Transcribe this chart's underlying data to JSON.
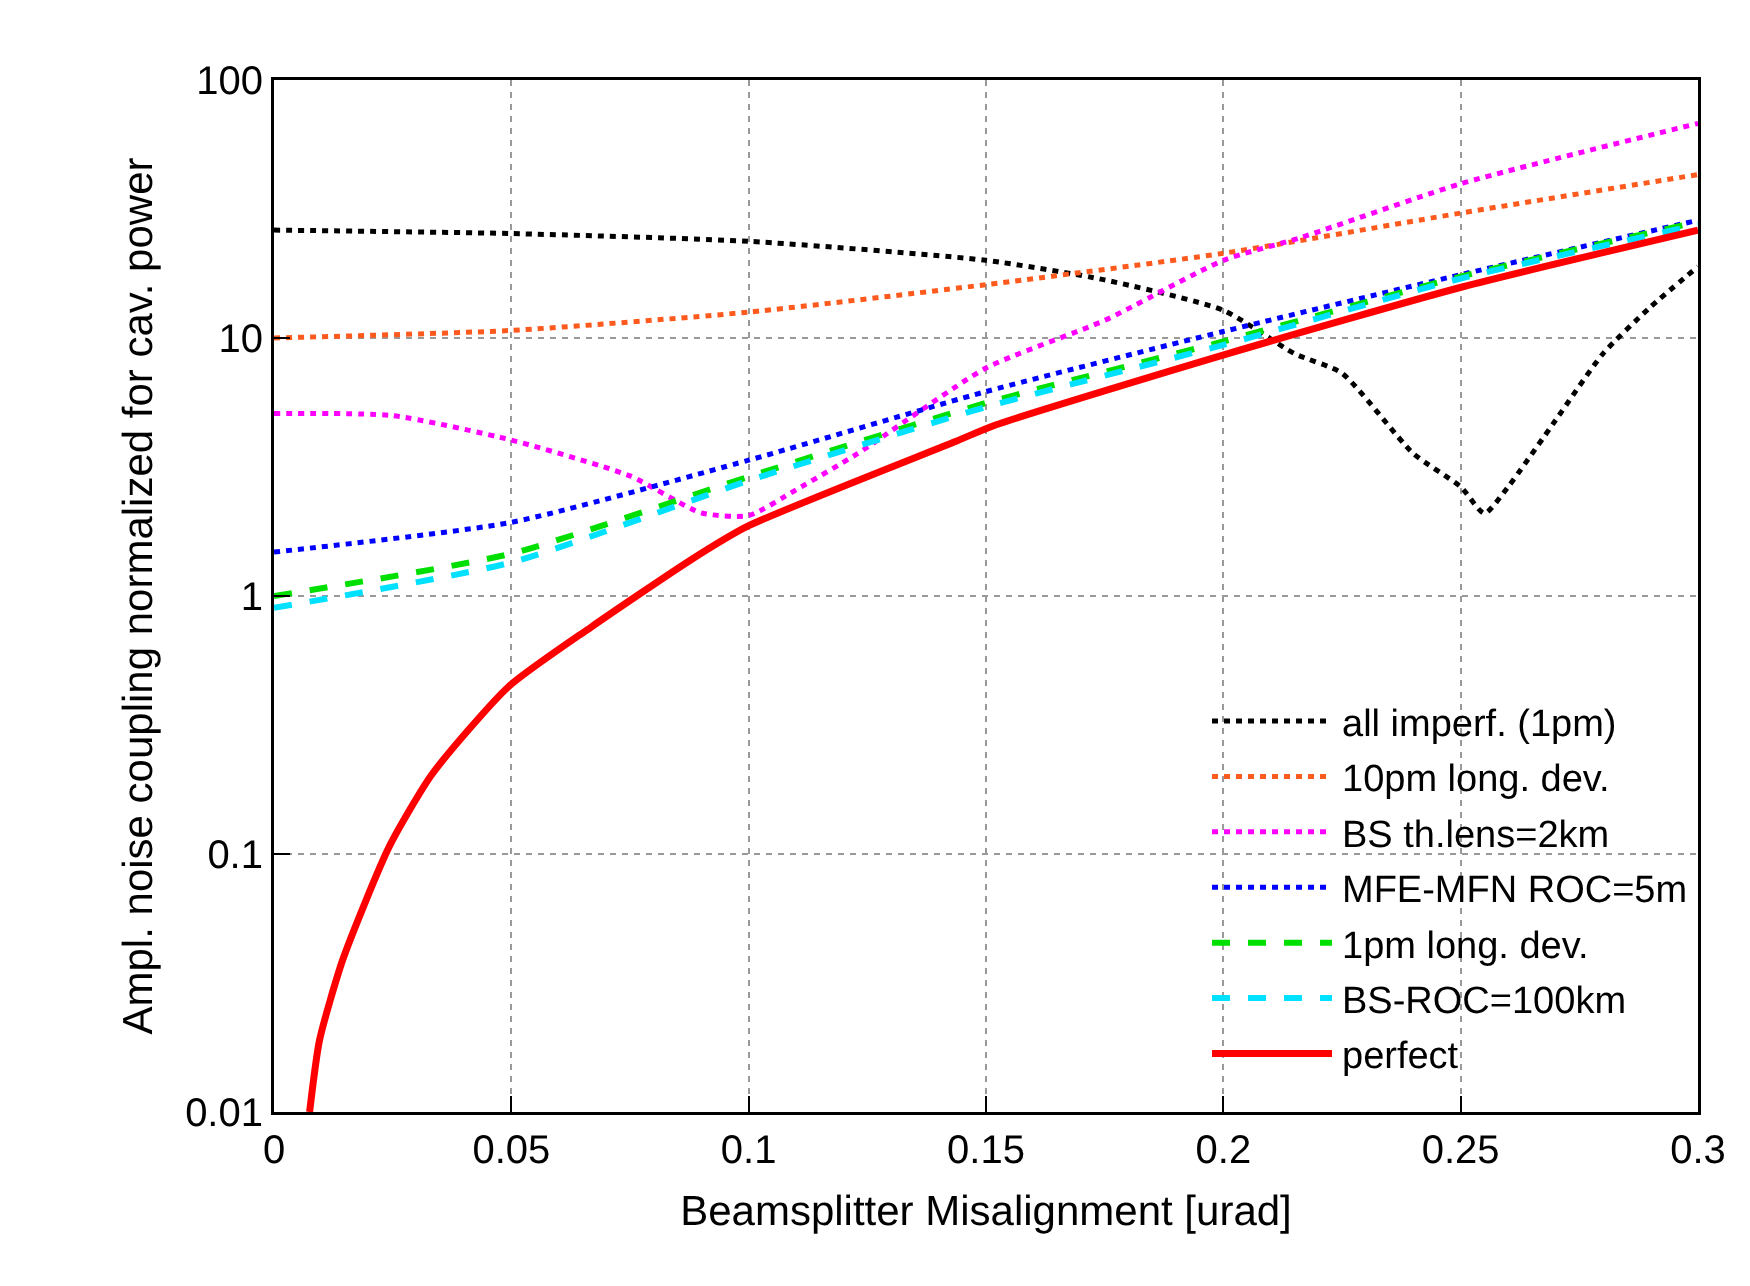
{
  "chart_data": {
    "type": "line",
    "xlabel": "Beamsplitter Misalignment [urad]",
    "ylabel": "Ampl. noise coupling normalized for cav. power",
    "xlim": [
      0,
      0.3
    ],
    "xticks": [
      0,
      0.05,
      0.1,
      0.15,
      0.2,
      0.25,
      0.3
    ],
    "ylim": [
      0.01,
      100
    ],
    "yticks": [
      0.01,
      0.1,
      1,
      10,
      100
    ],
    "log": "y",
    "grid": true,
    "legend": "bottom right",
    "series": [
      {
        "name": "all imperf. (1pm)",
        "color": "#000000",
        "line_style": "dotted",
        "x": [
          0,
          0.05,
          0.1,
          0.15,
          0.175,
          0.2,
          0.215,
          0.225,
          0.24,
          0.25,
          0.255,
          0.26,
          0.27,
          0.28,
          0.29,
          0.3
        ],
        "values": [
          26.2,
          25.4,
          23.7,
          20,
          16.8,
          12.8,
          8.7,
          7.3,
          3.57,
          2.65,
          2.09,
          2.65,
          4.8,
          8.7,
          13.2,
          18.9
        ]
      },
      {
        "name": "10pm long. dev.",
        "color": "#ff5a1e",
        "line_style": "dotted",
        "x": [
          0,
          0.05,
          0.1,
          0.15,
          0.2,
          0.25,
          0.3
        ],
        "values": [
          10,
          10.7,
          12.6,
          16.1,
          21.3,
          30.5,
          43
        ]
      },
      {
        "name": "BS th.lens=2km",
        "color": "#ff00ff",
        "line_style": "dotted",
        "x": [
          0,
          0.025,
          0.05,
          0.075,
          0.09,
          0.1,
          0.11,
          0.123,
          0.15,
          0.175,
          0.2,
          0.216,
          0.25,
          0.3
        ],
        "values": [
          5.1,
          5,
          4.02,
          2.92,
          2.1,
          2.05,
          2.58,
          3.57,
          7.65,
          11.7,
          20,
          24.4,
          39.6,
          67.9
        ]
      },
      {
        "name": "MFE-MFN ROC=5m",
        "color": "#0000ff",
        "line_style": "dotted",
        "x": [
          0,
          0.05,
          0.1,
          0.15,
          0.2,
          0.25,
          0.3
        ],
        "values": [
          1.48,
          1.93,
          3.36,
          6.2,
          10.6,
          17.6,
          28.6
        ]
      },
      {
        "name": "1pm long. dev.",
        "color": "#00e000",
        "line_style": "dashed",
        "x": [
          0,
          0.05,
          0.1,
          0.15,
          0.2,
          0.25,
          0.3
        ],
        "values": [
          1,
          1.46,
          2.9,
          5.6,
          9.7,
          17.3,
          28.2
        ]
      },
      {
        "name": "BS-ROC=100km",
        "color": "#00e0ff",
        "line_style": "dashed",
        "x": [
          0,
          0.05,
          0.1,
          0.15,
          0.2,
          0.25,
          0.3
        ],
        "values": [
          0.9,
          1.35,
          2.8,
          5.4,
          9.4,
          17,
          27.5
        ]
      },
      {
        "name": "perfect",
        "color": "#ff0000",
        "line_style": "solid",
        "x": [
          0.0075,
          0.0096,
          0.0145,
          0.0243,
          0.0334,
          0.0494,
          0.0669,
          0.0878,
          0.0997,
          0.1437,
          0.152,
          0.201,
          0.2505,
          0.3
        ],
        "values": [
          0.01,
          0.019,
          0.039,
          0.107,
          0.205,
          0.445,
          0.76,
          1.38,
          1.86,
          3.98,
          4.6,
          8.7,
          15.8,
          26.2
        ]
      }
    ]
  }
}
